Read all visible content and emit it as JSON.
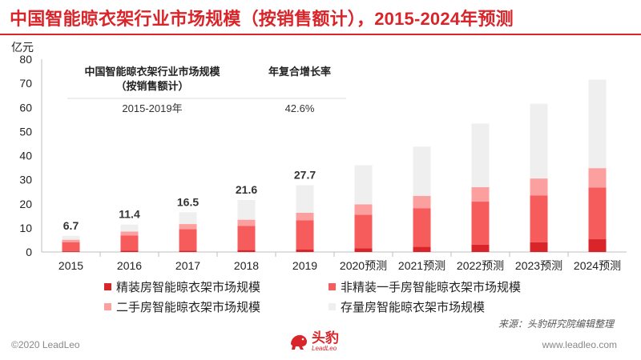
{
  "page": {
    "title": "中国智能晾衣架行业市场规模（按销售额计），2015-2024年预测",
    "source": "来源：头豹研究院编辑整理",
    "copyright": "©2020 LeadLeo",
    "website": "www.leadleo.com",
    "logo_cn": "头豹",
    "logo_en": "LeadLeo",
    "colors": {
      "title": "#d9252a"
    }
  },
  "cagr_table": {
    "header_metric": "中国智能晾衣架行业市场规模（按销售额计）",
    "header_rate": "年复合增长率",
    "period": "2015-2019年",
    "rate": "42.6%"
  },
  "chart_data": {
    "type": "bar",
    "stacked": true,
    "unit_label": "亿元",
    "ylim": [
      0,
      80
    ],
    "yticks": [
      0,
      10,
      20,
      30,
      40,
      50,
      60,
      70,
      80
    ],
    "grid": false,
    "legend_position": "bottom",
    "categories": [
      "2015",
      "2016",
      "2017",
      "2018",
      "2019",
      "2020预测",
      "2021预测",
      "2022预测",
      "2023预测",
      "2024预测"
    ],
    "series": [
      {
        "name": "精装房智能晾衣架市场规模",
        "color": "#d9252a",
        "values": [
          0.3,
          0.5,
          0.6,
          0.8,
          1.0,
          1.6,
          2.2,
          3.0,
          4.0,
          5.3
        ]
      },
      {
        "name": "非精装一手房智能晾衣架市场规模",
        "color": "#f65c5c",
        "values": [
          3.8,
          6.4,
          8.9,
          10.0,
          12.2,
          13.9,
          16.0,
          17.9,
          19.5,
          21.5
        ]
      },
      {
        "name": "二手房智能晾衣架市场规模",
        "color": "#fc9f9f",
        "values": [
          1.0,
          1.6,
          2.1,
          2.6,
          3.1,
          4.3,
          5.1,
          6.0,
          7.0,
          8.0
        ]
      },
      {
        "name": "存量房智能晾衣架市场规模",
        "color": "#efefef",
        "values": [
          1.6,
          2.9,
          4.9,
          8.2,
          11.4,
          16.2,
          20.4,
          26.4,
          31.0,
          36.7
        ]
      }
    ],
    "totals": [
      6.7,
      11.4,
      16.5,
      21.6,
      27.7,
      null,
      null,
      null,
      null,
      null
    ],
    "total_labels": [
      "6.7",
      "11.4",
      "16.5",
      "21.6",
      "27.7"
    ]
  }
}
